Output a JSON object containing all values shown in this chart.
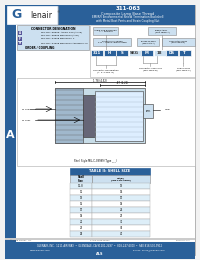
{
  "title_num": "311-063",
  "title_line1": "Composite Lamp Base Thread",
  "title_line2": "EMI/RFI Environmental Shield Termination Backshell",
  "title_line3": "with Metal Boot Pants and Strain Coupling Nut",
  "company": "Glenair",
  "header_bg": "#2a6099",
  "header_text_color": "#ffffff",
  "left_bar_color": "#2a6099",
  "side_bar_label": "A",
  "connector_info_title": "CONNECTOR DESIGNATION",
  "order_label": "ORDER / COUPLING",
  "part_num_boxes": [
    "311",
    "H",
    "S",
    "SKG",
    "M",
    "18",
    "DS",
    "T"
  ],
  "table_title": "TABLE II: SHELL SIZE",
  "table_rows": [
    [
      "11-8",
      "13"
    ],
    [
      "11",
      "14"
    ],
    [
      "13",
      "17"
    ],
    [
      "15",
      "19"
    ],
    [
      "17",
      "24"
    ],
    [
      "19",
      "27"
    ],
    [
      "21",
      "31"
    ],
    [
      "23",
      "36"
    ],
    [
      "25",
      "40"
    ]
  ],
  "footer_company": "GLENAIR, INC.",
  "footer_address": "1211 AIR WAY  •  GLENDALE, CA 91201-2497  •  818-247-6000  •  FAX 818-500-9912",
  "footer_web": "www.glenair.com",
  "footer_email": "E-Mail: sales@glenair.com",
  "footer_doc": "ALS",
  "bg_color": "#f2f2f2",
  "light_blue": "#cce0f0",
  "medium_blue": "#2a6099",
  "body_bg": "#ffffff"
}
